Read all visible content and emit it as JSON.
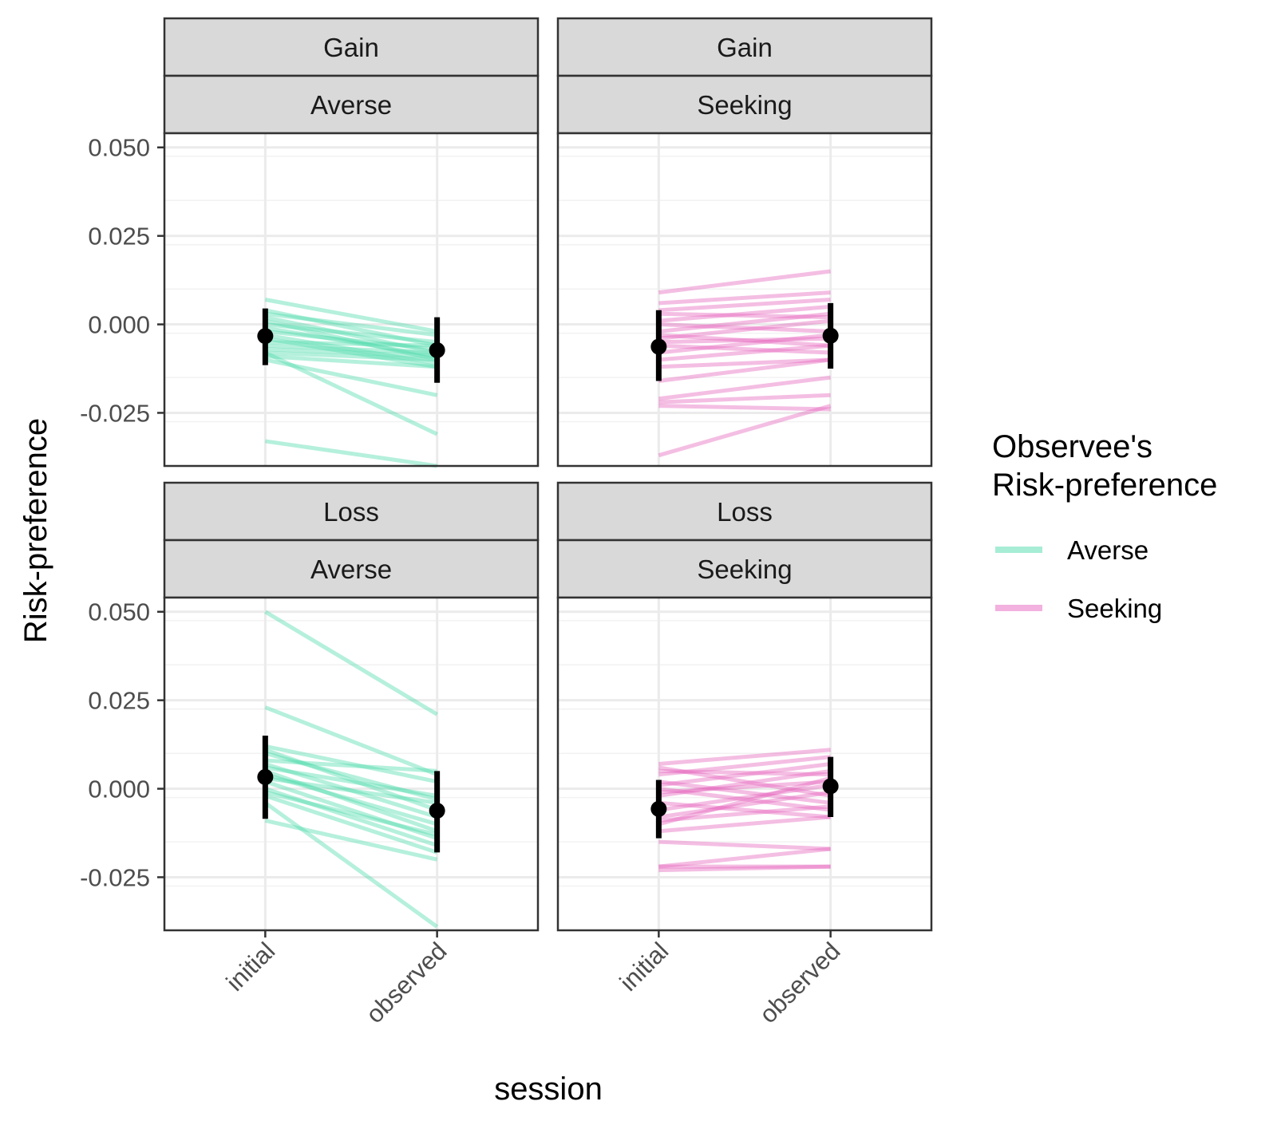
{
  "chart_data": {
    "type": "line",
    "xlabel": "session",
    "ylabel": "Risk-preference",
    "x_categories": [
      "initial",
      "observed"
    ],
    "ylim": [
      -0.04,
      0.054
    ],
    "y_ticks": [
      0.05,
      0.025,
      0.0,
      -0.025
    ],
    "y_tick_labels": [
      "0.050",
      "0.025",
      "0.000",
      "-0.025"
    ],
    "grid": true,
    "legend": {
      "title_lines": [
        "Observee's",
        "Risk-preference"
      ],
      "placement": "right",
      "entries": [
        {
          "label": "Averse",
          "color": "#4fdbac"
        },
        {
          "label": "Seeking",
          "color": "#e563bd"
        }
      ]
    },
    "panels": [
      {
        "strip_top": "Gain",
        "strip_bottom": "Averse",
        "group": "Averse",
        "color": "#4fdbac",
        "subjects": [
          [
            0.007,
            -0.002
          ],
          [
            0.004,
            -0.006
          ],
          [
            0.003,
            -0.003
          ],
          [
            0.002,
            -0.008
          ],
          [
            0.001,
            -0.01
          ],
          [
            0.0,
            -0.005
          ],
          [
            -0.001,
            -0.009
          ],
          [
            -0.002,
            -0.007
          ],
          [
            -0.003,
            -0.011
          ],
          [
            -0.004,
            -0.012
          ],
          [
            -0.005,
            -0.006
          ],
          [
            -0.006,
            -0.008
          ],
          [
            -0.007,
            -0.009
          ],
          [
            -0.008,
            -0.01
          ],
          [
            -0.009,
            -0.012
          ],
          [
            -0.01,
            -0.02
          ],
          [
            -0.008,
            -0.031
          ],
          [
            -0.033,
            -0.04
          ]
        ],
        "mean": {
          "initial": -0.0033,
          "observed": -0.0073
        },
        "ci": {
          "initial": [
            -0.0115,
            0.0045
          ],
          "observed": [
            -0.0165,
            0.002
          ]
        }
      },
      {
        "strip_top": "Gain",
        "strip_bottom": "Seeking",
        "group": "Seeking",
        "color": "#e563bd",
        "subjects": [
          [
            0.009,
            0.015
          ],
          [
            0.006,
            0.009
          ],
          [
            0.004,
            0.007
          ],
          [
            0.003,
            0.002
          ],
          [
            0.001,
            0.005
          ],
          [
            0.0,
            -0.002
          ],
          [
            -0.002,
            0.003
          ],
          [
            -0.003,
            -0.006
          ],
          [
            -0.004,
            0.001
          ],
          [
            -0.005,
            -0.004
          ],
          [
            -0.006,
            -0.008
          ],
          [
            -0.008,
            -0.003
          ],
          [
            -0.01,
            -0.006
          ],
          [
            -0.012,
            -0.01
          ],
          [
            -0.016,
            -0.01
          ],
          [
            -0.021,
            -0.015
          ],
          [
            -0.022,
            -0.02
          ],
          [
            -0.023,
            -0.024
          ],
          [
            -0.037,
            -0.023
          ]
        ],
        "mean": {
          "initial": -0.0063,
          "observed": -0.0032
        },
        "ci": {
          "initial": [
            -0.016,
            0.004
          ],
          "observed": [
            -0.0125,
            0.006
          ]
        }
      },
      {
        "strip_top": "Loss",
        "strip_bottom": "Averse",
        "group": "Averse",
        "color": "#4fdbac",
        "subjects": [
          [
            0.05,
            0.021
          ],
          [
            0.023,
            0.004
          ],
          [
            0.012,
            0.002
          ],
          [
            0.011,
            -0.006
          ],
          [
            0.01,
            -0.003
          ],
          [
            0.008,
            0.005
          ],
          [
            0.007,
            -0.008
          ],
          [
            0.006,
            -0.002
          ],
          [
            0.005,
            -0.012
          ],
          [
            0.004,
            -0.01
          ],
          [
            0.003,
            -0.004
          ],
          [
            0.002,
            -0.014
          ],
          [
            0.0,
            -0.016
          ],
          [
            -0.001,
            -0.013
          ],
          [
            -0.002,
            -0.018
          ],
          [
            -0.004,
            -0.039
          ],
          [
            -0.009,
            -0.02
          ]
        ],
        "mean": {
          "initial": 0.0033,
          "observed": -0.0062
        },
        "ci": {
          "initial": [
            -0.0085,
            0.015
          ],
          "observed": [
            -0.018,
            0.005
          ]
        }
      },
      {
        "strip_top": "Loss",
        "strip_bottom": "Seeking",
        "group": "Seeking",
        "color": "#e563bd",
        "subjects": [
          [
            0.007,
            0.011
          ],
          [
            0.006,
            -0.002
          ],
          [
            0.005,
            0.004
          ],
          [
            0.004,
            0.009
          ],
          [
            0.002,
            -0.004
          ],
          [
            0.001,
            0.007
          ],
          [
            0.0,
            -0.006
          ],
          [
            -0.001,
            0.002
          ],
          [
            -0.002,
            0.005
          ],
          [
            -0.004,
            -0.008
          ],
          [
            -0.006,
            0.001
          ],
          [
            -0.008,
            -0.001
          ],
          [
            -0.009,
            -0.005
          ],
          [
            -0.01,
            0.003
          ],
          [
            -0.012,
            -0.008
          ],
          [
            -0.015,
            -0.017
          ],
          [
            -0.022,
            -0.017
          ],
          [
            -0.022,
            -0.022
          ],
          [
            -0.023,
            -0.022
          ]
        ],
        "mean": {
          "initial": -0.0057,
          "observed": 0.0007
        },
        "ci": {
          "initial": [
            -0.014,
            0.0025
          ],
          "observed": [
            -0.008,
            0.009
          ]
        }
      }
    ]
  }
}
